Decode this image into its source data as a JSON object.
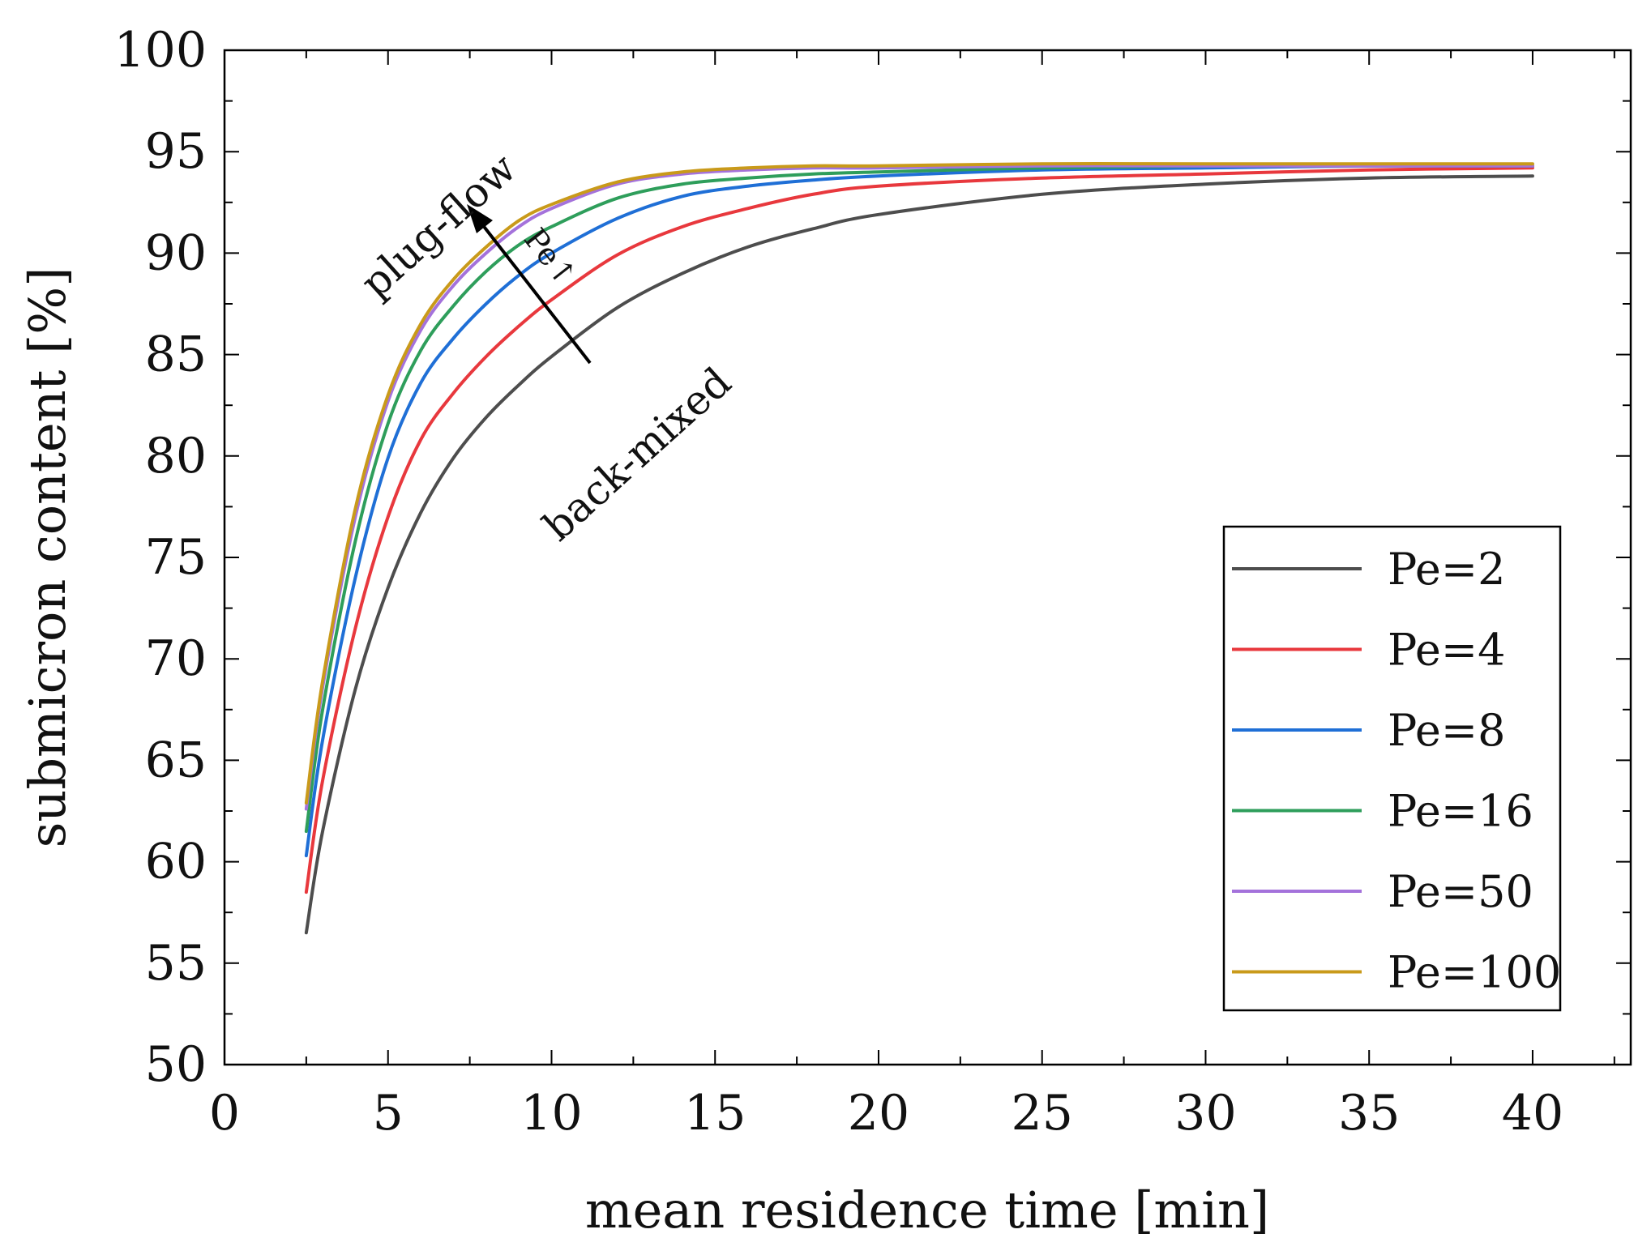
{
  "chart_data": {
    "type": "line",
    "title": "",
    "xlabel": "mean residence time [min]",
    "ylabel": "submicron content [%]",
    "xlim": [
      0,
      43
    ],
    "ylim": [
      50,
      100
    ],
    "xticks": [
      0,
      5,
      10,
      15,
      20,
      25,
      30,
      35,
      40
    ],
    "yticks": [
      50,
      55,
      60,
      65,
      70,
      75,
      80,
      85,
      90,
      95,
      100
    ],
    "legend_position": "bottom-right",
    "x": [
      2.5,
      3,
      4,
      5,
      6,
      7,
      8,
      9,
      10,
      12,
      14,
      16,
      18,
      20,
      25,
      30,
      35,
      40
    ],
    "series": [
      {
        "name": "Pe=2",
        "color": "#4d4d4d",
        "values": [
          56.5,
          61.5,
          68.5,
          73.5,
          77.2,
          79.9,
          81.9,
          83.5,
          84.9,
          87.3,
          89.0,
          90.3,
          91.2,
          91.9,
          92.9,
          93.4,
          93.7,
          93.8
        ]
      },
      {
        "name": "Pe=4",
        "color": "#e8383d",
        "values": [
          58.5,
          64.0,
          71.5,
          77.0,
          80.8,
          83.1,
          84.9,
          86.4,
          87.7,
          89.9,
          91.3,
          92.2,
          92.9,
          93.3,
          93.7,
          93.9,
          94.1,
          94.2
        ]
      },
      {
        "name": "Pe=8",
        "color": "#1f6fd6",
        "values": [
          60.3,
          66.0,
          74.0,
          79.9,
          83.6,
          85.8,
          87.5,
          88.9,
          90.0,
          91.7,
          92.8,
          93.3,
          93.6,
          93.8,
          94.1,
          94.2,
          94.3,
          94.3
        ]
      },
      {
        "name": "Pe=16",
        "color": "#2e9e5b",
        "values": [
          61.5,
          67.5,
          75.8,
          81.6,
          85.2,
          87.4,
          89.1,
          90.4,
          91.3,
          92.7,
          93.4,
          93.7,
          93.9,
          94.0,
          94.2,
          94.3,
          94.3,
          94.3
        ]
      },
      {
        "name": "Pe=50",
        "color": "#a472db",
        "values": [
          62.6,
          68.6,
          77.0,
          82.7,
          86.2,
          88.4,
          90.0,
          91.3,
          92.2,
          93.4,
          93.9,
          94.1,
          94.2,
          94.2,
          94.3,
          94.3,
          94.3,
          94.3
        ]
      },
      {
        "name": "Pe=100",
        "color": "#c99a1a",
        "values": [
          62.9,
          68.9,
          77.4,
          83.0,
          86.5,
          88.7,
          90.3,
          91.6,
          92.4,
          93.5,
          94.0,
          94.2,
          94.3,
          94.3,
          94.4,
          94.4,
          94.4,
          94.4
        ]
      }
    ],
    "annotations": {
      "top": "plug-flow",
      "bottom": "back-mixed",
      "arrow_label": "Pe↑"
    }
  }
}
